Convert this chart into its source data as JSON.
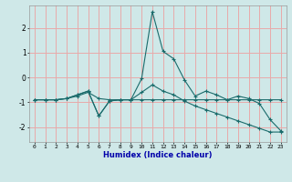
{
  "xlabel": "Humidex (Indice chaleur)",
  "bg_color": "#cfe8e8",
  "grid_color": "#e8aaaa",
  "line_color": "#1a6b6b",
  "xlim": [
    -0.5,
    23.5
  ],
  "ylim": [
    -2.6,
    2.9
  ],
  "yticks": [
    -2,
    -1,
    0,
    1,
    2
  ],
  "xticks": [
    0,
    1,
    2,
    3,
    4,
    5,
    6,
    7,
    8,
    9,
    10,
    11,
    12,
    13,
    14,
    15,
    16,
    17,
    18,
    19,
    20,
    21,
    22,
    23
  ],
  "line1_x": [
    0,
    1,
    2,
    3,
    4,
    5,
    6,
    7,
    8,
    9,
    10,
    11,
    12,
    13,
    14,
    15,
    16,
    17,
    18,
    19,
    20,
    21,
    22,
    23
  ],
  "line1_y": [
    -0.9,
    -0.9,
    -0.9,
    -0.85,
    -0.7,
    -0.55,
    -1.55,
    -0.95,
    -0.9,
    -0.9,
    -0.05,
    2.65,
    1.05,
    0.75,
    -0.1,
    -0.75,
    -0.55,
    -0.7,
    -0.9,
    -0.75,
    -0.85,
    -1.05,
    -1.7,
    -2.15
  ],
  "line2_x": [
    0,
    1,
    2,
    3,
    4,
    5,
    6,
    7,
    8,
    9,
    10,
    11,
    12,
    13,
    14,
    15,
    16,
    17,
    18,
    19,
    20,
    21,
    22,
    23
  ],
  "line2_y": [
    -0.9,
    -0.9,
    -0.9,
    -0.85,
    -0.75,
    -0.6,
    -0.85,
    -0.9,
    -0.9,
    -0.9,
    -0.9,
    -0.9,
    -0.9,
    -0.9,
    -0.9,
    -0.9,
    -0.9,
    -0.9,
    -0.9,
    -0.9,
    -0.9,
    -0.9,
    -0.9,
    -0.9
  ],
  "line3_x": [
    0,
    1,
    2,
    3,
    4,
    5,
    6,
    7,
    8,
    9,
    10,
    11,
    12,
    13,
    14,
    15,
    16,
    17,
    18,
    19,
    20,
    21,
    22,
    23
  ],
  "line3_y": [
    -0.9,
    -0.9,
    -0.9,
    -0.85,
    -0.7,
    -0.55,
    -1.55,
    -0.95,
    -0.9,
    -0.9,
    -0.6,
    -0.3,
    -0.55,
    -0.7,
    -0.95,
    -1.15,
    -1.3,
    -1.45,
    -1.6,
    -1.75,
    -1.9,
    -2.05,
    -2.2,
    -2.2
  ]
}
